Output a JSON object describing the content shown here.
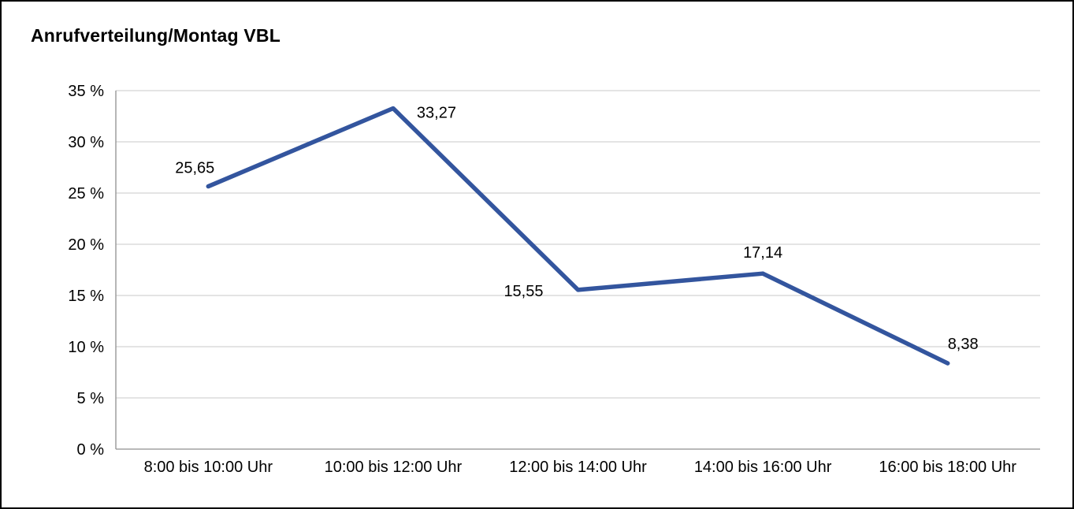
{
  "chart_data": {
    "type": "line",
    "title": "Anrufverteilung/Montag VBL",
    "categories": [
      "8:00 bis 10:00 Uhr",
      "10:00 bis 12:00 Uhr",
      "12:00 bis 14:00 Uhr",
      "14:00 bis 16:00 Uhr",
      "16:00 bis 18:00 Uhr"
    ],
    "values": [
      25.65,
      33.27,
      15.55,
      17.14,
      8.38
    ],
    "data_labels": [
      "25,65",
      "33,27",
      "15,55",
      "17,14",
      "8,38"
    ],
    "label_placements": [
      "above-left",
      "right",
      "left",
      "above",
      "above-right"
    ],
    "ylim": [
      0,
      35
    ],
    "ytick_step": 5,
    "ytick_labels": [
      "0 %",
      "5 %",
      "10 %",
      "15 %",
      "20 %",
      "25 %",
      "30 %",
      "35 %"
    ],
    "xlabel": "",
    "ylabel": "",
    "grid": true,
    "legend": "none",
    "line_color": "#33559E",
    "grid_color": "#C8C8C8",
    "axis_color": "#8F8F8F",
    "text_color": "#000000",
    "background": "#FFFFFF",
    "frame_border_color": "#000000"
  }
}
